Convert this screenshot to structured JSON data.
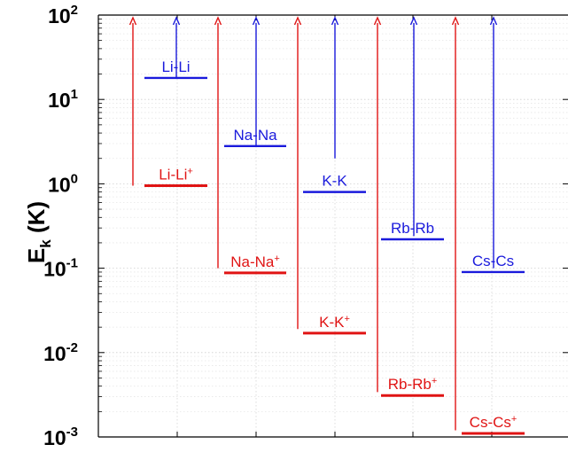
{
  "chart_data": {
    "type": "energy-level",
    "title": "",
    "xlabel": "",
    "ylabel": "E",
    "ylabel_subscript": "k",
    "ylabel_unit": " (K)",
    "yscale": "log",
    "ylim": [
      0.001,
      100
    ],
    "y_ticks": [
      {
        "base": "10",
        "exp": "-3",
        "value": 0.001
      },
      {
        "base": "10",
        "exp": "-2",
        "value": 0.01
      },
      {
        "base": "10",
        "exp": "-1",
        "value": 0.1
      },
      {
        "base": "10",
        "exp": "0",
        "value": 1
      },
      {
        "base": "10",
        "exp": "1",
        "value": 10
      },
      {
        "base": "10",
        "exp": "2",
        "value": 100
      }
    ],
    "grid": true,
    "colors": {
      "neutral": "#1a1adc",
      "ionic": "#e01414"
    },
    "groups": [
      {
        "neutral": {
          "name": "Li-Li",
          "level": 18,
          "arrow_base": 18
        },
        "ionic": {
          "name": "Li-Li",
          "sup": "+",
          "level": 0.95,
          "arrow_base": 0.95
        }
      },
      {
        "neutral": {
          "name": "Na-Na",
          "level": 2.8,
          "arrow_base": 2.8
        },
        "ionic": {
          "name": "Na-Na",
          "sup": "+",
          "level": 0.088,
          "arrow_base": 0.1
        }
      },
      {
        "neutral": {
          "name": "K-K",
          "level": 0.8,
          "arrow_base": 2.0
        },
        "ionic": {
          "name": "K-K",
          "sup": "+",
          "level": 0.017,
          "arrow_base": 0.019
        }
      },
      {
        "neutral": {
          "name": "Rb-Rb",
          "level": 0.22,
          "arrow_base": 0.24
        },
        "ionic": {
          "name": "Rb-Rb",
          "sup": "+",
          "level": 0.0031,
          "arrow_base": 0.0034
        }
      },
      {
        "neutral": {
          "name": "Cs-Cs",
          "level": 0.09,
          "arrow_base": 0.1
        },
        "ionic": {
          "name": "Cs-Cs",
          "sup": "+",
          "level": 0.0011,
          "arrow_base": 0.0012
        }
      }
    ]
  }
}
